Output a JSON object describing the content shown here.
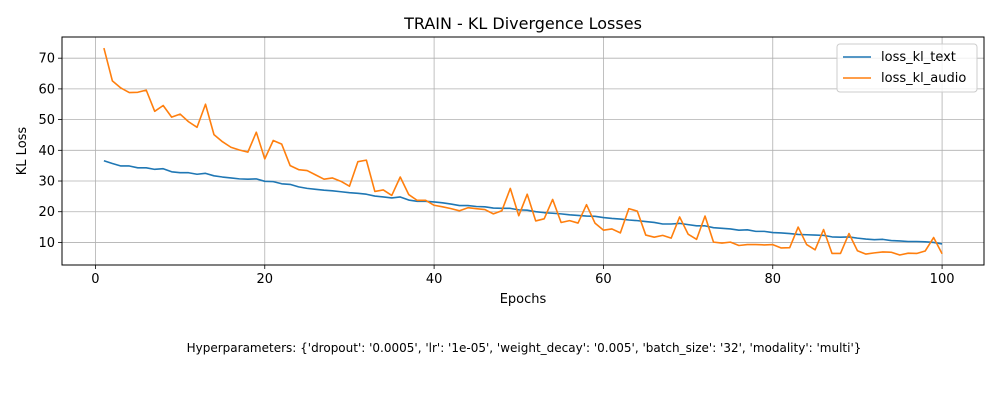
{
  "chart_data": {
    "type": "line",
    "title": "TRAIN - KL Divergence Losses",
    "xlabel": "Epochs",
    "ylabel": "KL Loss",
    "xlim": [
      -3.95,
      104.95
    ],
    "ylim": [
      2.65,
      76.9
    ],
    "xticks": [
      0,
      20,
      40,
      60,
      80,
      100
    ],
    "yticks": [
      10,
      20,
      30,
      40,
      50,
      60,
      70
    ],
    "grid": true,
    "legend_position": "top-right",
    "x_start": 1,
    "series": [
      {
        "name": "loss_kl_text",
        "color": "#1f77b4",
        "values": [
          36.6,
          35.7,
          34.9,
          34.9,
          34.3,
          34.3,
          33.8,
          34.0,
          33.0,
          32.7,
          32.7,
          32.2,
          32.5,
          31.7,
          31.3,
          31.0,
          30.7,
          30.6,
          30.7,
          29.9,
          29.8,
          29.1,
          28.9,
          28.1,
          27.6,
          27.3,
          27.0,
          26.8,
          26.5,
          26.2,
          26.0,
          25.7,
          25.1,
          24.8,
          24.5,
          24.8,
          23.8,
          23.4,
          23.4,
          23.2,
          22.9,
          22.5,
          22.0,
          22.0,
          21.7,
          21.6,
          21.2,
          21.1,
          21.1,
          20.6,
          20.5,
          20.0,
          19.7,
          19.5,
          19.3,
          19.0,
          18.8,
          18.6,
          18.5,
          18.1,
          17.8,
          17.6,
          17.3,
          17.1,
          16.8,
          16.5,
          16.0,
          16.0,
          16.2,
          15.8,
          15.4,
          15.4,
          14.8,
          14.6,
          14.4,
          14.0,
          14.1,
          13.6,
          13.6,
          13.2,
          13.1,
          12.9,
          12.6,
          12.5,
          12.4,
          12.3,
          11.8,
          11.7,
          11.8,
          11.4,
          11.1,
          10.9,
          11.0,
          10.6,
          10.5,
          10.3,
          10.3,
          10.2,
          10.0,
          9.5
        ]
      },
      {
        "name": "loss_kl_audio",
        "color": "#ff7f0e",
        "values": [
          73.3,
          62.6,
          60.3,
          58.8,
          58.9,
          59.6,
          52.7,
          54.6,
          50.8,
          51.8,
          49.3,
          47.5,
          55.0,
          45.1,
          42.8,
          41.0,
          40.1,
          39.4,
          45.9,
          37.2,
          43.2,
          42.0,
          35.0,
          33.7,
          33.4,
          32.0,
          30.6,
          31.0,
          29.9,
          28.3,
          36.3,
          36.8,
          26.6,
          27.1,
          25.3,
          31.3,
          25.6,
          23.7,
          23.7,
          22.1,
          21.6,
          21.0,
          20.3,
          21.3,
          21.0,
          20.7,
          19.3,
          20.3,
          27.6,
          18.7,
          25.7,
          17.0,
          17.7,
          24.0,
          16.5,
          17.1,
          16.3,
          22.3,
          16.3,
          14.0,
          14.4,
          13.1,
          21.0,
          20.2,
          12.4,
          11.7,
          12.3,
          11.4,
          18.3,
          12.7,
          11.0,
          18.6,
          10.1,
          9.8,
          10.1,
          9.0,
          9.3,
          9.3,
          9.2,
          9.3,
          8.2,
          8.3,
          15.0,
          9.3,
          7.6,
          14.2,
          6.4,
          6.4,
          12.9,
          7.3,
          6.2,
          6.6,
          6.9,
          6.8,
          5.9,
          6.5,
          6.4,
          7.2,
          11.6,
          6.3
        ]
      }
    ]
  },
  "caption": "Hyperparameters: {'dropout': '0.0005', 'lr': '1e-05', 'weight_decay': '0.005', 'batch_size': '32', 'modality': 'multi'}"
}
